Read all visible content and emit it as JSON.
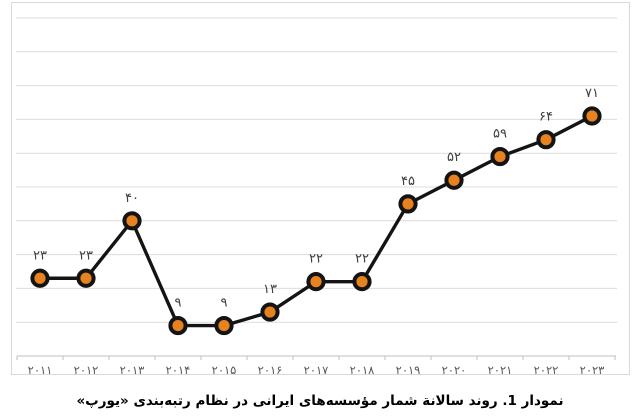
{
  "window": {
    "background": "#FFFFFF"
  },
  "chart_data": {
    "type": "line",
    "title": "",
    "categories": [
      "۲۰۱۱",
      "۲۰۱۲",
      "۲۰۱۳",
      "۲۰۱۴",
      "۲۰۱۵",
      "۲۰۱۶",
      "۲۰۱۷",
      "۲۰۱۸",
      "۲۰۱۹",
      "۲۰۲۰",
      "۲۰۲۱",
      "۲۰۲۲",
      "۲۰۲۳"
    ],
    "values": [
      23,
      23,
      40,
      9,
      9,
      13,
      22,
      22,
      45,
      52,
      59,
      64,
      71
    ],
    "point_labels": [
      "۲۳",
      "۲۳",
      "۴۰",
      "۹",
      "۹",
      "۱۳",
      "۲۲",
      "۲۲",
      "۴۵",
      "۵۲",
      "۵۹",
      "۶۴",
      "۷۱"
    ],
    "xlabel": "",
    "ylabel": "",
    "ylim": [
      0,
      100
    ],
    "grid_step": 10,
    "grid": "horizontal-only",
    "legend_position": "none",
    "y_axis_labels_visible": false,
    "colors": {
      "line": "#141414",
      "marker_fill": "#E8821E",
      "marker_stroke": "#141414",
      "gridline": "#DCDCDC",
      "axis": "#BFBFBF",
      "tick": "#BFBFBF",
      "x_label": "#595959",
      "point_label": "#3F3F3F",
      "frame_border": "#D9D9D9"
    }
  },
  "caption": {
    "text": "نمودار 1. روند سالانة شمار مؤسسه‌های ایرانی در نظام رتبه‌بندی «یورپ»"
  }
}
